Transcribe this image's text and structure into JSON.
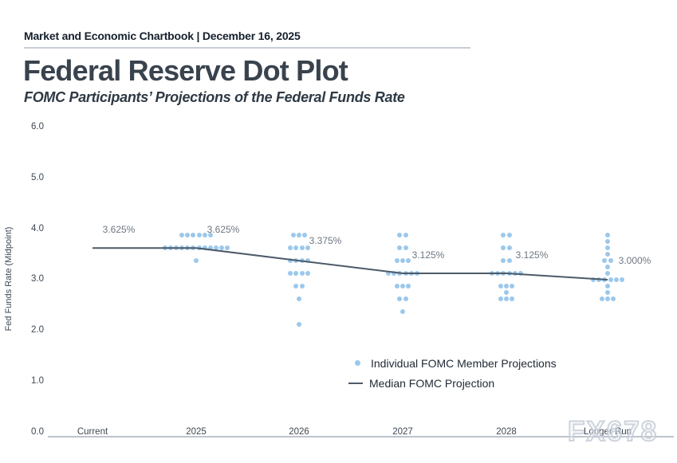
{
  "header": {
    "chartbook": "Market and Economic Chartbook | December 16, 2025",
    "title": "Federal Reserve Dot Plot",
    "subtitle": "FOMC Participants’ Projections of the Federal Funds Rate"
  },
  "watermark": "FX678",
  "chart_data": {
    "type": "scatter",
    "title": "Federal Reserve Dot Plot",
    "subtitle": "FOMC Participants’ Projections of the Federal Funds Rate",
    "xlabel": "",
    "ylabel": "Fed Funds Rate (Midpoint)",
    "ylim": [
      0.0,
      6.0
    ],
    "yticks": [
      "6.0",
      "5.0",
      "4.0",
      "3.0",
      "2.0",
      "1.0",
      "0.0"
    ],
    "ytick_values": [
      6.0,
      5.0,
      4.0,
      3.0,
      2.0,
      1.0,
      0.0
    ],
    "grid": false,
    "legend_position": "lower right",
    "categories": [
      "Current",
      "2025",
      "2026",
      "2027",
      "2028",
      "Longer Run"
    ],
    "dots": [
      [],
      [
        {
          "rate": 3.875,
          "count": 6
        },
        {
          "rate": 3.625,
          "count": 12
        },
        {
          "rate": 3.375,
          "count": 1
        }
      ],
      [
        {
          "rate": 3.875,
          "count": 3
        },
        {
          "rate": 3.625,
          "count": 4
        },
        {
          "rate": 3.375,
          "count": 4
        },
        {
          "rate": 3.125,
          "count": 4
        },
        {
          "rate": 2.875,
          "count": 2
        },
        {
          "rate": 2.625,
          "count": 1
        },
        {
          "rate": 2.125,
          "count": 1
        }
      ],
      [
        {
          "rate": 3.875,
          "count": 2
        },
        {
          "rate": 3.625,
          "count": 2
        },
        {
          "rate": 3.375,
          "count": 3
        },
        {
          "rate": 3.125,
          "count": 6
        },
        {
          "rate": 2.875,
          "count": 3
        },
        {
          "rate": 2.625,
          "count": 2
        },
        {
          "rate": 2.375,
          "count": 1
        }
      ],
      [
        {
          "rate": 3.875,
          "count": 2
        },
        {
          "rate": 3.625,
          "count": 2
        },
        {
          "rate": 3.375,
          "count": 2
        },
        {
          "rate": 3.125,
          "count": 6
        },
        {
          "rate": 2.875,
          "count": 3
        },
        {
          "rate": 2.75,
          "count": 1
        },
        {
          "rate": 2.625,
          "count": 3
        }
      ],
      [
        {
          "rate": 3.875,
          "count": 1
        },
        {
          "rate": 3.75,
          "count": 1
        },
        {
          "rate": 3.625,
          "count": 1
        },
        {
          "rate": 3.5,
          "count": 1
        },
        {
          "rate": 3.375,
          "count": 2
        },
        {
          "rate": 3.25,
          "count": 1
        },
        {
          "rate": 3.125,
          "count": 1
        },
        {
          "rate": 3.0,
          "count": 6
        },
        {
          "rate": 2.875,
          "count": 1
        },
        {
          "rate": 2.75,
          "count": 1
        },
        {
          "rate": 2.625,
          "count": 3
        }
      ]
    ],
    "series": [
      {
        "name": "Median FOMC Projection",
        "values": [
          3.625,
          3.625,
          3.375,
          3.125,
          3.125,
          3.0
        ]
      }
    ],
    "median_labels": [
      "3.625%",
      "3.625%",
      "3.375%",
      "3.125%",
      "3.125%",
      "3.000%"
    ],
    "legend": [
      {
        "marker": "dot",
        "label": "Individual FOMC Member Projections"
      },
      {
        "marker": "line",
        "label": "Median FOMC Projection"
      }
    ],
    "colors": {
      "dot": "rgba(88,164,224,0.6)",
      "dot_solid": "#9bc8ec",
      "median_line": "#4d5a68"
    }
  }
}
